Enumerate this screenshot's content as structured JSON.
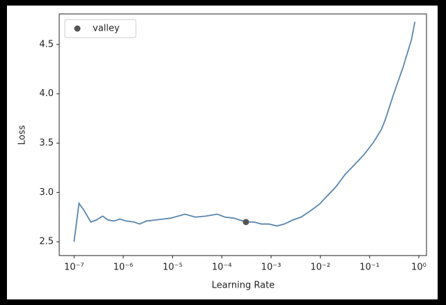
{
  "chart_data": {
    "type": "line",
    "xlabel": "Learning Rate",
    "ylabel": "Loss",
    "xscale": "log",
    "legend": "upper left",
    "grid": false,
    "xlim": [
      5e-08,
      1.43
    ],
    "ylim": [
      2.36,
      4.81
    ],
    "xticks": [
      {
        "value": 1e-07,
        "label": "10⁻⁷"
      },
      {
        "value": 1e-06,
        "label": "10⁻⁶"
      },
      {
        "value": 1e-05,
        "label": "10⁻⁵"
      },
      {
        "value": 0.0001,
        "label": "10⁻⁴"
      },
      {
        "value": 0.001,
        "label": "10⁻³"
      },
      {
        "value": 0.01,
        "label": "10⁻²"
      },
      {
        "value": 0.1,
        "label": "10⁻¹"
      },
      {
        "value": 1,
        "label": "10⁰"
      }
    ],
    "yticks": [
      2.5,
      {
        "value": 3,
        "label": "3.0"
      },
      3.5,
      {
        "value": 4,
        "label": "4.0"
      },
      4.5
    ],
    "series": [
      {
        "type": "line",
        "color": "#5a86ad",
        "x": [
          1e-07,
          1.26e-07,
          1.58e-07,
          2.19e-07,
          2.82e-07,
          3.8e-07,
          4.9e-07,
          6.46e-07,
          8.51e-07,
          1.15e-06,
          1.66e-06,
          2.14e-06,
          2.95e-06,
          4.37e-06,
          6.31e-06,
          9.33e-06,
          1.29e-05,
          1.78e-05,
          2.88e-05,
          4.68e-05,
          8.13e-05,
          0.000115,
          0.000174,
          0.000309,
          0.000457,
          0.000631,
          0.000891,
          0.00132,
          0.00186,
          0.00275,
          0.00407,
          0.00617,
          0.00955,
          0.0141,
          0.0209,
          0.0316,
          0.0513,
          0.0759,
          0.117,
          0.174,
          0.209,
          0.309,
          0.479,
          0.708,
          0.832
        ],
        "values": [
          2.5,
          2.89,
          2.82,
          2.7,
          2.72,
          2.76,
          2.72,
          2.71,
          2.73,
          2.71,
          2.7,
          2.68,
          2.71,
          2.72,
          2.73,
          2.74,
          2.76,
          2.78,
          2.75,
          2.76,
          2.78,
          2.75,
          2.74,
          2.7,
          2.7,
          2.68,
          2.68,
          2.66,
          2.68,
          2.72,
          2.75,
          2.81,
          2.88,
          2.97,
          3.06,
          3.18,
          3.29,
          3.38,
          3.5,
          3.64,
          3.74,
          4.0,
          4.27,
          4.55,
          4.73
        ]
      },
      {
        "type": "scatter",
        "name": "valley",
        "color": "#555555",
        "x": [
          0.000309
        ],
        "values": [
          2.7
        ]
      }
    ]
  }
}
